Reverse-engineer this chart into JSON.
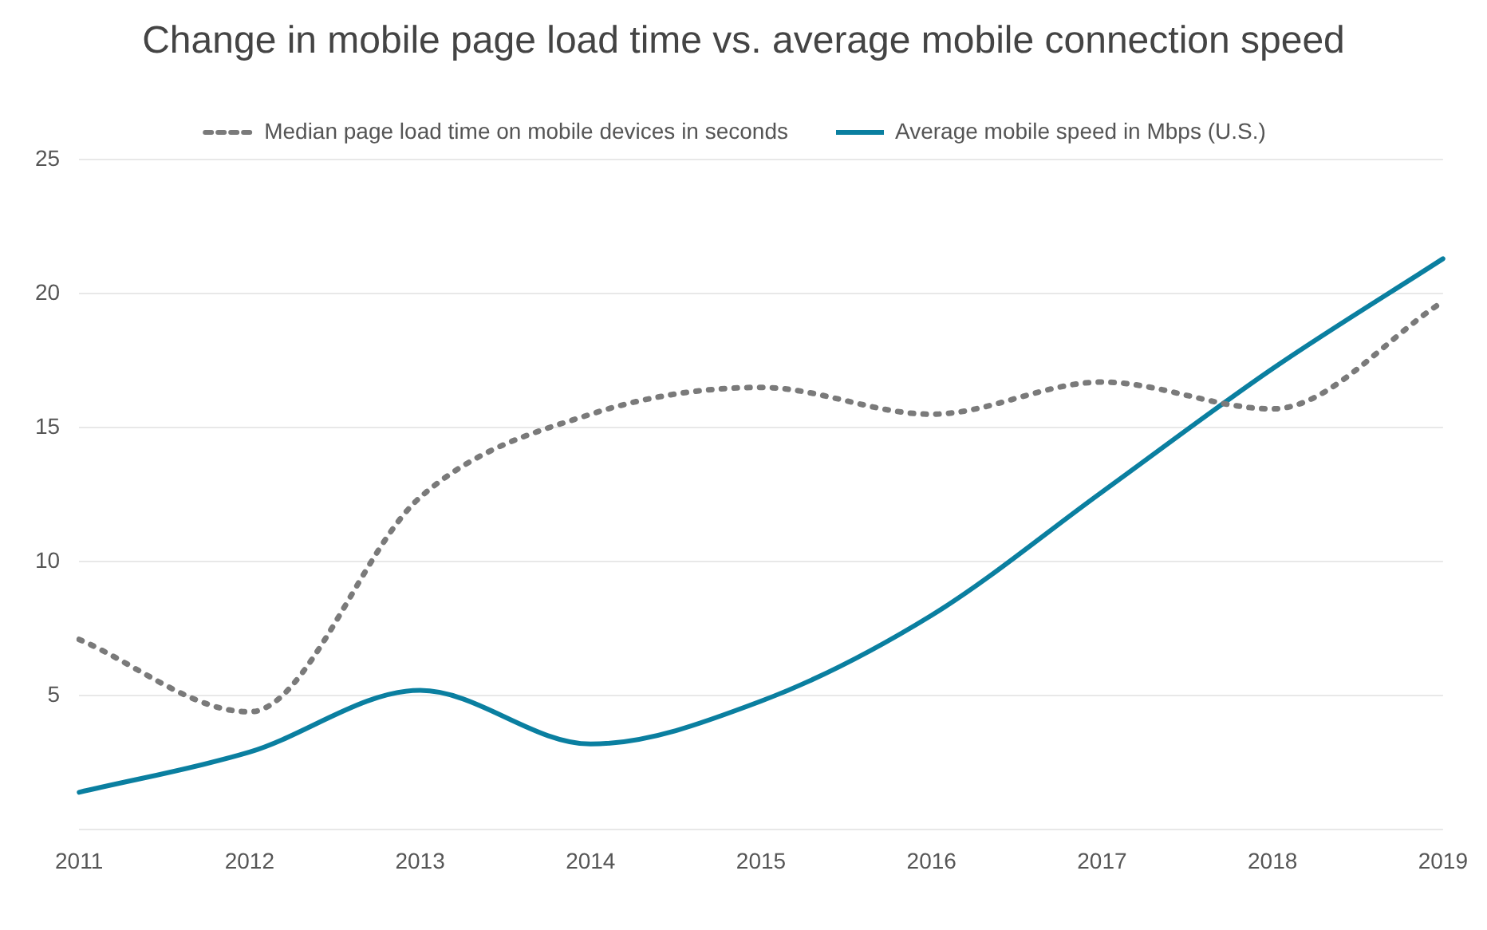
{
  "chart_data": {
    "type": "line",
    "title": "Change in mobile page load time vs. average mobile connection speed",
    "categories": [
      "2011",
      "2012",
      "2013",
      "2014",
      "2015",
      "2016",
      "2017",
      "2018",
      "2019"
    ],
    "series": [
      {
        "name": "Median page load time on mobile devices in seconds",
        "color": "#7a7a7a",
        "line_style": "dotted",
        "values": [
          7.1,
          4.4,
          12.4,
          15.5,
          16.5,
          15.5,
          16.7,
          15.7,
          19.7
        ]
      },
      {
        "name": "Average mobile speed in Mbps (U.S.)",
        "color": "#0a7fa0",
        "line_style": "solid",
        "values": [
          1.4,
          2.9,
          5.2,
          3.2,
          4.8,
          8.0,
          12.6,
          17.2,
          21.3
        ]
      }
    ],
    "ylim": [
      0,
      25
    ],
    "yticks": [
      {
        "value": 0,
        "label": null
      },
      5,
      10,
      15,
      20,
      25
    ],
    "grid": "y",
    "legend": "top",
    "marker": "none"
  }
}
